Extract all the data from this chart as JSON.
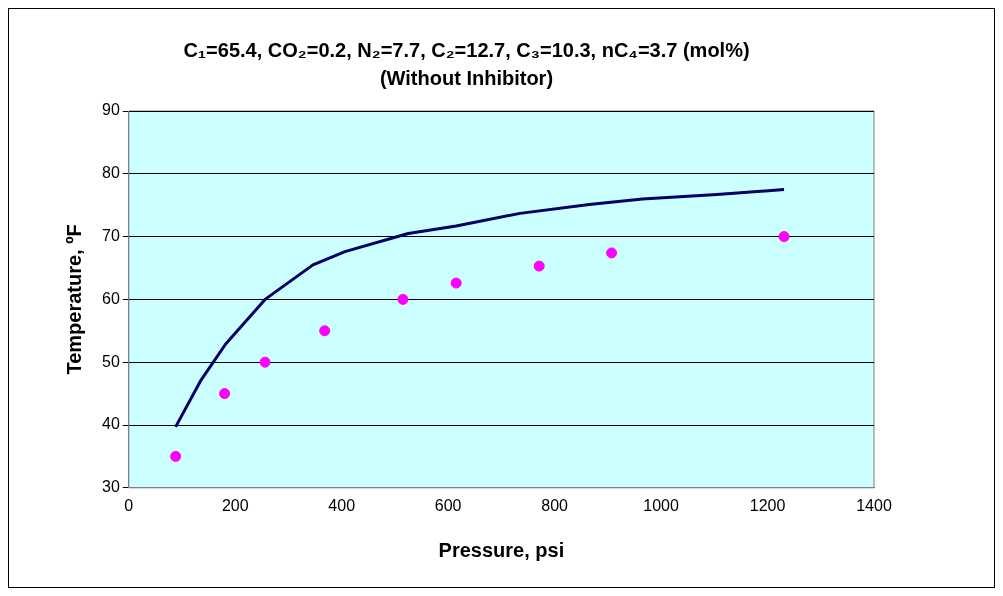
{
  "chart_data": {
    "type": "scatter",
    "title": "C₁=65.4, CO₂=0.2, N₂=7.7, C₂=12.7, C₃=10.3, nC₄=3.7 (mol%)",
    "subtitle": "(Without Inhibitor)",
    "xlabel": "Pressure, psi",
    "ylabel": "Temperature, ºF",
    "xlim": [
      0,
      1400
    ],
    "xticks": [
      0,
      200,
      400,
      600,
      800,
      1000,
      1200,
      1400
    ],
    "ylim": [
      30,
      90
    ],
    "yticks": [
      30,
      40,
      50,
      60,
      70,
      80,
      90
    ],
    "grid": "y",
    "legend": false,
    "series": [
      {
        "type": "line",
        "color": "#000066",
        "marker": "none",
        "line_style": "solid",
        "x": [
          88,
          136,
          182,
          256,
          346,
          406,
          525,
          615,
          735,
          865,
          965,
          1105,
          1231
        ],
        "values": [
          39.7,
          47.2,
          52.9,
          60,
          65.5,
          67.6,
          70.5,
          71.7,
          73.7,
          75.1,
          76,
          76.7,
          77.5
        ]
      },
      {
        "type": "scatter",
        "color": "#ff00ff",
        "marker": "circle",
        "x": [
          88,
          180,
          256,
          368,
          515,
          615,
          771,
          907,
          1231
        ],
        "values": [
          35,
          45,
          50,
          55,
          60,
          62.6,
          65.3,
          67.4,
          70
        ]
      }
    ]
  }
}
